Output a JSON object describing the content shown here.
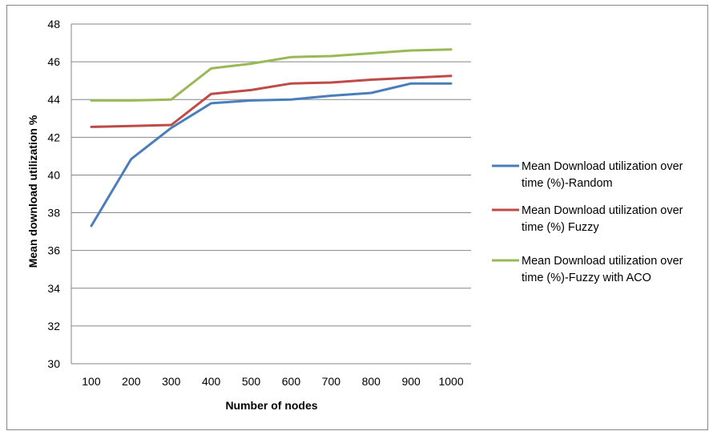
{
  "chart_data": {
    "type": "line",
    "title": "",
    "xlabel": "Number of nodes",
    "ylabel": "Mean download utilization %",
    "categories": [
      "100",
      "200",
      "300",
      "400",
      "500",
      "600",
      "700",
      "800",
      "900",
      "1000"
    ],
    "ylim": [
      30,
      48
    ],
    "yticks": [
      "30",
      "32",
      "34",
      "36",
      "38",
      "40",
      "42",
      "44",
      "46",
      "48"
    ],
    "grid": "horizontal",
    "legend_position": "right",
    "series": [
      {
        "name_lines": [
          "Mean Download utilization over",
          "time (%)-Random"
        ],
        "color": "#4A7EBB",
        "values": [
          37.3,
          40.85,
          42.5,
          43.8,
          43.95,
          44.0,
          44.2,
          44.35,
          44.85,
          44.85
        ]
      },
      {
        "name_lines": [
          "Mean Download utilization over",
          "time (%) Fuzzy"
        ],
        "color": "#BE4B48",
        "values": [
          42.55,
          42.6,
          42.65,
          44.3,
          44.5,
          44.85,
          44.9,
          45.05,
          45.15,
          45.25
        ]
      },
      {
        "name_lines": [
          "Mean Download utilization over",
          "time (%)-Fuzzy with ACO"
        ],
        "color": "#98B954",
        "values": [
          43.95,
          43.95,
          44.0,
          45.65,
          45.9,
          46.25,
          46.3,
          46.45,
          46.6,
          46.65
        ]
      }
    ]
  }
}
